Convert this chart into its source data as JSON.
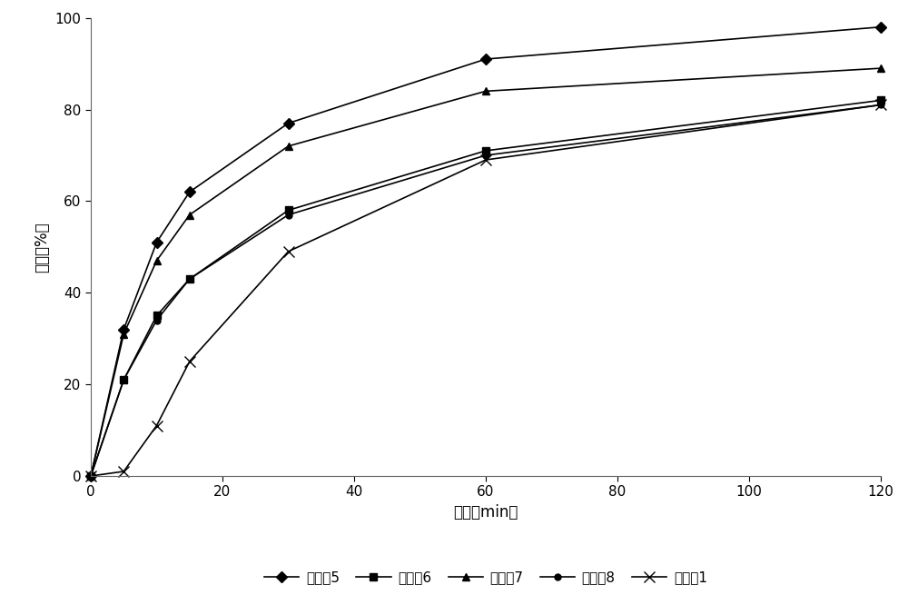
{
  "xlabel": "时间（min）",
  "ylabel": "释放（%）",
  "xlim": [
    0,
    120
  ],
  "ylim": [
    0,
    100
  ],
  "xticks": [
    0,
    20,
    40,
    60,
    80,
    100,
    120
  ],
  "yticks": [
    0,
    20,
    40,
    60,
    80,
    100
  ],
  "series": [
    {
      "label": "实施例5",
      "x": [
        0,
        5,
        10,
        15,
        30,
        60,
        120
      ],
      "y": [
        0,
        32,
        51,
        62,
        77,
        91,
        98
      ],
      "color": "#000000",
      "marker": "D",
      "markersize": 6,
      "linewidth": 1.2
    },
    {
      "label": "实施例6",
      "x": [
        0,
        5,
        10,
        15,
        30,
        60,
        120
      ],
      "y": [
        0,
        21,
        35,
        43,
        58,
        71,
        82
      ],
      "color": "#000000",
      "marker": "s",
      "markersize": 6,
      "linewidth": 1.2
    },
    {
      "label": "实施例7",
      "x": [
        0,
        5,
        10,
        15,
        30,
        60,
        120
      ],
      "y": [
        0,
        31,
        47,
        57,
        72,
        84,
        89
      ],
      "color": "#000000",
      "marker": "^",
      "markersize": 6,
      "linewidth": 1.2
    },
    {
      "label": "实施例8",
      "x": [
        0,
        5,
        10,
        15,
        30,
        60,
        120
      ],
      "y": [
        0,
        21,
        34,
        43,
        57,
        70,
        81
      ],
      "color": "#000000",
      "marker": "o",
      "markersize": 5,
      "linewidth": 1.2
    },
    {
      "label": "比较例1",
      "x": [
        0,
        5,
        10,
        15,
        30,
        60,
        120
      ],
      "y": [
        0,
        1,
        11,
        25,
        49,
        69,
        81
      ],
      "color": "#000000",
      "marker": "x",
      "markersize": 8,
      "linewidth": 1.2
    }
  ],
  "background_color": "#ffffff",
  "legend_ncol": 5,
  "legend_fontsize": 11,
  "axis_fontsize": 12,
  "tick_fontsize": 11,
  "dotted_baseline": true,
  "baseline_color": "#aaaaaa",
  "baseline_style": ":"
}
